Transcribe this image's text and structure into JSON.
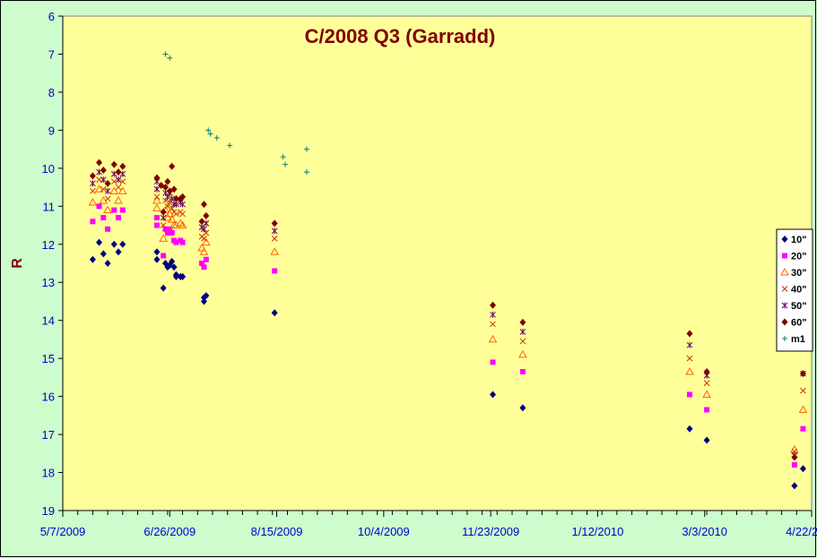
{
  "chart_data": {
    "type": "scatter",
    "title": "C/2008 Q3 (Garradd)",
    "xlabel": "",
    "ylabel": "R",
    "x_tick_labels": [
      "5/7/2009",
      "6/26/2009",
      "8/15/2009",
      "10/4/2009",
      "11/23/2009",
      "1/12/2010",
      "3/3/2010",
      "4/22/2010"
    ],
    "x_ticks": [
      "2009-05-07",
      "2009-06-26",
      "2009-08-15",
      "2009-10-04",
      "2009-11-23",
      "2010-01-12",
      "2010-03-03",
      "2010-04-22"
    ],
    "xlim": [
      "2009-05-07",
      "2010-04-22"
    ],
    "ylim": [
      6,
      19
    ],
    "y_reversed": true,
    "y_ticks": [
      6,
      7,
      8,
      9,
      10,
      11,
      12,
      13,
      14,
      15,
      16,
      17,
      18,
      19
    ],
    "grid": false,
    "legend_position": "right",
    "colors": {
      "background": "#cdfccd",
      "plot_area": "#ffff99",
      "axis_labels": "#0000cc",
      "title": "#7f0000"
    },
    "series": [
      {
        "name": "10\"",
        "marker": "diamond",
        "color": "#000080",
        "points": [
          [
            "2009-05-21",
            12.4
          ],
          [
            "2009-05-24",
            11.95
          ],
          [
            "2009-05-26",
            12.25
          ],
          [
            "2009-05-28",
            12.5
          ],
          [
            "2009-05-31",
            12.0
          ],
          [
            "2009-06-02",
            12.2
          ],
          [
            "2009-06-04",
            12.0
          ],
          [
            "2009-06-20",
            12.2
          ],
          [
            "2009-06-20",
            12.4
          ],
          [
            "2009-06-23",
            13.15
          ],
          [
            "2009-06-24",
            12.5
          ],
          [
            "2009-06-25",
            12.6
          ],
          [
            "2009-06-26",
            12.55
          ],
          [
            "2009-06-27",
            12.45
          ],
          [
            "2009-06-28",
            12.6
          ],
          [
            "2009-06-29",
            12.8
          ],
          [
            "2009-06-29",
            12.85
          ],
          [
            "2009-07-01",
            12.85
          ],
          [
            "2009-07-02",
            12.85
          ],
          [
            "2009-07-12",
            13.5
          ],
          [
            "2009-07-12",
            13.4
          ],
          [
            "2009-07-13",
            13.35
          ],
          [
            "2009-08-14",
            13.8
          ],
          [
            "2009-11-24",
            15.95
          ],
          [
            "2009-12-08",
            16.3
          ],
          [
            "2010-02-24",
            16.85
          ],
          [
            "2010-03-04",
            17.15
          ],
          [
            "2010-04-14",
            18.35
          ],
          [
            "2010-04-18",
            17.9
          ]
        ]
      },
      {
        "name": "20\"",
        "marker": "square",
        "color": "#ff00ff",
        "points": [
          [
            "2009-05-21",
            11.4
          ],
          [
            "2009-05-24",
            11.0
          ],
          [
            "2009-05-26",
            11.3
          ],
          [
            "2009-05-28",
            11.6
          ],
          [
            "2009-05-31",
            11.1
          ],
          [
            "2009-06-02",
            11.3
          ],
          [
            "2009-06-04",
            11.1
          ],
          [
            "2009-06-20",
            11.3
          ],
          [
            "2009-06-20",
            11.5
          ],
          [
            "2009-06-23",
            12.3
          ],
          [
            "2009-06-24",
            11.6
          ],
          [
            "2009-06-25",
            11.7
          ],
          [
            "2009-06-26",
            11.6
          ],
          [
            "2009-06-27",
            11.7
          ],
          [
            "2009-06-28",
            11.9
          ],
          [
            "2009-06-29",
            11.95
          ],
          [
            "2009-07-01",
            11.9
          ],
          [
            "2009-07-02",
            11.95
          ],
          [
            "2009-07-11",
            12.5
          ],
          [
            "2009-07-12",
            12.6
          ],
          [
            "2009-07-13",
            12.4
          ],
          [
            "2009-08-14",
            12.7
          ],
          [
            "2009-11-24",
            15.1
          ],
          [
            "2009-12-08",
            15.35
          ],
          [
            "2010-02-24",
            15.95
          ],
          [
            "2010-03-04",
            16.35
          ],
          [
            "2010-04-14",
            17.8
          ],
          [
            "2010-04-18",
            16.85
          ]
        ]
      },
      {
        "name": "30\"",
        "marker": "triangle",
        "color": "#ff6600",
        "points": [
          [
            "2009-05-21",
            10.9
          ],
          [
            "2009-05-24",
            10.55
          ],
          [
            "2009-05-26",
            10.85
          ],
          [
            "2009-05-28",
            11.1
          ],
          [
            "2009-05-31",
            10.6
          ],
          [
            "2009-06-02",
            10.85
          ],
          [
            "2009-06-04",
            10.6
          ],
          [
            "2009-06-20",
            10.85
          ],
          [
            "2009-06-20",
            11.05
          ],
          [
            "2009-06-23",
            11.85
          ],
          [
            "2009-06-24",
            11.1
          ],
          [
            "2009-06-25",
            11.3
          ],
          [
            "2009-06-26",
            11.2
          ],
          [
            "2009-06-27",
            11.35
          ],
          [
            "2009-06-28",
            11.5
          ],
          [
            "2009-06-29",
            11.5
          ],
          [
            "2009-07-01",
            11.45
          ],
          [
            "2009-07-02",
            11.5
          ],
          [
            "2009-07-11",
            12.1
          ],
          [
            "2009-07-12",
            12.2
          ],
          [
            "2009-07-13",
            11.95
          ],
          [
            "2009-08-14",
            12.2
          ],
          [
            "2009-11-24",
            14.5
          ],
          [
            "2009-12-08",
            14.9
          ],
          [
            "2010-02-24",
            15.35
          ],
          [
            "2010-03-04",
            15.95
          ],
          [
            "2010-04-14",
            17.4
          ],
          [
            "2010-04-18",
            16.35
          ]
        ]
      },
      {
        "name": "40\"",
        "marker": "x",
        "color": "#cc3300",
        "points": [
          [
            "2009-05-21",
            10.6
          ],
          [
            "2009-05-24",
            10.3
          ],
          [
            "2009-05-26",
            10.55
          ],
          [
            "2009-05-28",
            10.8
          ],
          [
            "2009-05-31",
            10.35
          ],
          [
            "2009-06-02",
            10.5
          ],
          [
            "2009-06-04",
            10.35
          ],
          [
            "2009-06-20",
            10.55
          ],
          [
            "2009-06-20",
            10.75
          ],
          [
            "2009-06-23",
            11.5
          ],
          [
            "2009-06-24",
            10.85
          ],
          [
            "2009-06-25",
            11.0
          ],
          [
            "2009-06-26",
            10.9
          ],
          [
            "2009-06-27",
            11.05
          ],
          [
            "2009-06-28",
            11.15
          ],
          [
            "2009-06-29",
            11.2
          ],
          [
            "2009-07-01",
            11.15
          ],
          [
            "2009-07-02",
            11.2
          ],
          [
            "2009-07-11",
            11.8
          ],
          [
            "2009-07-12",
            11.85
          ],
          [
            "2009-07-13",
            11.7
          ],
          [
            "2009-08-14",
            11.85
          ],
          [
            "2009-11-24",
            14.1
          ],
          [
            "2009-12-08",
            14.55
          ],
          [
            "2010-02-24",
            15.0
          ],
          [
            "2010-03-04",
            15.65
          ],
          [
            "2010-04-14",
            17.45
          ],
          [
            "2010-04-18",
            15.85
          ]
        ]
      },
      {
        "name": "50\"",
        "marker": "asterisk",
        "color": "#660066",
        "points": [
          [
            "2009-05-21",
            10.4
          ],
          [
            "2009-05-24",
            10.1
          ],
          [
            "2009-05-26",
            10.3
          ],
          [
            "2009-05-28",
            10.6
          ],
          [
            "2009-05-31",
            10.15
          ],
          [
            "2009-06-02",
            10.3
          ],
          [
            "2009-06-04",
            10.15
          ],
          [
            "2009-06-20",
            10.35
          ],
          [
            "2009-06-20",
            10.55
          ],
          [
            "2009-06-23",
            11.3
          ],
          [
            "2009-06-24",
            10.65
          ],
          [
            "2009-06-25",
            10.75
          ],
          [
            "2009-06-26",
            10.65
          ],
          [
            "2009-06-27",
            10.8
          ],
          [
            "2009-06-28",
            10.95
          ],
          [
            "2009-06-29",
            10.95
          ],
          [
            "2009-07-01",
            10.9
          ],
          [
            "2009-07-02",
            10.95
          ],
          [
            "2009-07-11",
            11.55
          ],
          [
            "2009-07-12",
            11.6
          ],
          [
            "2009-07-13",
            11.45
          ],
          [
            "2009-08-14",
            11.65
          ],
          [
            "2009-11-24",
            13.85
          ],
          [
            "2009-12-08",
            14.3
          ],
          [
            "2010-02-24",
            14.65
          ],
          [
            "2010-03-04",
            15.45
          ],
          [
            "2010-04-14",
            17.55
          ],
          [
            "2010-04-18",
            15.4
          ]
        ]
      },
      {
        "name": "60\"",
        "marker": "circle",
        "color": "#800000",
        "points": [
          [
            "2009-05-21",
            10.2
          ],
          [
            "2009-05-24",
            9.85
          ],
          [
            "2009-05-26",
            10.05
          ],
          [
            "2009-05-28",
            10.4
          ],
          [
            "2009-05-31",
            9.9
          ],
          [
            "2009-06-02",
            10.1
          ],
          [
            "2009-06-04",
            9.95
          ],
          [
            "2009-06-20",
            10.25
          ],
          [
            "2009-06-22",
            10.45
          ],
          [
            "2009-06-23",
            11.15
          ],
          [
            "2009-06-24",
            10.5
          ],
          [
            "2009-06-25",
            10.35
          ],
          [
            "2009-06-26",
            10.6
          ],
          [
            "2009-06-27",
            9.95
          ],
          [
            "2009-06-28",
            10.55
          ],
          [
            "2009-06-29",
            10.8
          ],
          [
            "2009-07-01",
            10.8
          ],
          [
            "2009-07-02",
            10.75
          ],
          [
            "2009-07-11",
            11.4
          ],
          [
            "2009-07-12",
            10.95
          ],
          [
            "2009-07-13",
            11.25
          ],
          [
            "2009-08-14",
            11.45
          ],
          [
            "2009-11-24",
            13.6
          ],
          [
            "2009-12-08",
            14.05
          ],
          [
            "2010-02-24",
            14.35
          ],
          [
            "2010-03-04",
            15.35
          ],
          [
            "2010-04-14",
            17.6
          ],
          [
            "2010-04-18",
            15.4
          ]
        ]
      },
      {
        "name": "m1",
        "marker": "plus",
        "color": "#008080",
        "points": [
          [
            "2009-06-24",
            7.0
          ],
          [
            "2009-06-26",
            7.1
          ],
          [
            "2009-07-14",
            9.0
          ],
          [
            "2009-07-15",
            9.1
          ],
          [
            "2009-07-18",
            9.2
          ],
          [
            "2009-07-24",
            9.4
          ],
          [
            "2009-08-18",
            9.7
          ],
          [
            "2009-08-19",
            9.9
          ],
          [
            "2009-08-29",
            9.5
          ],
          [
            "2009-08-29",
            10.1
          ]
        ]
      }
    ]
  }
}
